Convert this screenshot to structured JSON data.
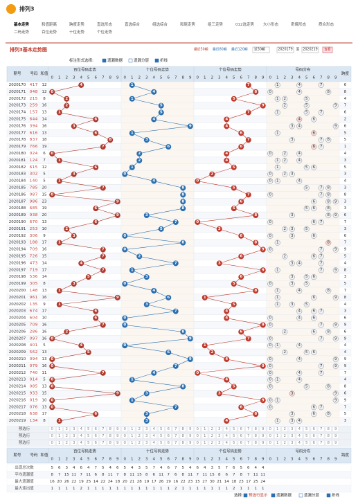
{
  "header": {
    "logo": "排列3",
    "tabs": [
      "基本走势",
      "和值距离",
      "跨度走势",
      "直选形态",
      "直选综合",
      "组选综合",
      "和尾走势",
      "组三走势",
      "012选走势",
      "大小形态",
      "奇偶形态",
      "质合形态",
      "二码走势",
      "百位走势",
      "十位走势",
      "个位走势"
    ]
  },
  "title": "排列3基本走势图",
  "ranges": [
    "最近50期",
    "最近80期",
    "最近120期"
  ],
  "select": "近30期",
  "from": "2020179",
  "to_word": "至",
  "to": "2020219",
  "button": "查看",
  "options": {
    "label": "标注形式选择:",
    "items": [
      "遗漏数据",
      "遗漏分层",
      "折线"
    ]
  },
  "columns": {
    "period": "期号",
    "number": "号码",
    "sum": "和值",
    "groups": [
      "百位号码走势",
      "十位号码走势",
      "个位号码走势",
      "号码分布"
    ],
    "span": "跨度",
    "digits": [
      0,
      1,
      2,
      3,
      4,
      5,
      6,
      7,
      8,
      9
    ]
  },
  "rows": [
    {
      "period": "2020170",
      "number": [
        4,
        1,
        7
      ],
      "sum": 12,
      "span": 6
    },
    {
      "period": "2020171",
      "number": [
        0,
        4,
        8
      ],
      "sum": 12,
      "span": 8
    },
    {
      "period": "2020172",
      "number": [
        2,
        1,
        5
      ],
      "sum": 8,
      "span": 4
    },
    {
      "period": "2020173",
      "number": [
        2,
        5,
        9
      ],
      "sum": 16,
      "span": 7
    },
    {
      "period": "2020174",
      "number": [
        1,
        5,
        7
      ],
      "sum": 13,
      "span": 6
    },
    {
      "period": "2020175",
      "number": [
        6,
        4,
        4
      ],
      "sum": 14,
      "span": 2
    },
    {
      "period": "2020176",
      "number": [
        3,
        9,
        4
      ],
      "sum": 16,
      "span": 6
    },
    {
      "period": "2020177",
      "number": [
        6,
        1,
        6
      ],
      "sum": 13,
      "span": 5
    },
    {
      "period": "2020178",
      "number": [
        8,
        3,
        7
      ],
      "sum": 18,
      "span": 5
    },
    {
      "period": "2020179",
      "number": [
        7,
        6,
        6
      ],
      "sum": 19,
      "span": 1
    },
    {
      "period": "2020180",
      "number": [
        0,
        2,
        4
      ],
      "sum": 6,
      "span": 4
    },
    {
      "period": "2020181",
      "number": [
        1,
        2,
        4
      ],
      "sum": 7,
      "span": 3
    },
    {
      "period": "2020182",
      "number": [
        6,
        1,
        5
      ],
      "sum": 12,
      "span": 5
    },
    {
      "period": "2020183",
      "number": [
        3,
        0,
        2
      ],
      "sum": 5,
      "span": 3
    },
    {
      "period": "2020184",
      "number": [
        1,
        4,
        0
      ],
      "sum": 5,
      "span": 4
    },
    {
      "period": "2020185",
      "number": [
        7,
        8,
        5
      ],
      "sum": 20,
      "span": 3
    },
    {
      "period": "2020186",
      "number": [
        0,
        8,
        7
      ],
      "sum": 15,
      "span": 8
    },
    {
      "period": "2020187",
      "number": [
        9,
        8,
        6
      ],
      "sum": 23,
      "span": 3
    },
    {
      "period": "2020188",
      "number": [
        6,
        8,
        5
      ],
      "sum": 19,
      "span": 3
    },
    {
      "period": "2020189",
      "number": [
        9,
        3,
        8
      ],
      "sum": 20,
      "span": 6
    },
    {
      "period": "2020190",
      "number": [
        6,
        7,
        0
      ],
      "sum": 13,
      "span": 7
    },
    {
      "period": "2020191",
      "number": [
        2,
        5,
        3
      ],
      "sum": 10,
      "span": 3
    },
    {
      "period": "2020192",
      "number": [
        3,
        0,
        6
      ],
      "sum": 9,
      "span": 6
    },
    {
      "period": "2020193",
      "number": [
        1,
        8,
        8
      ],
      "sum": 17,
      "span": 7
    },
    {
      "period": "2020194",
      "number": [
        7,
        0,
        9
      ],
      "sum": 16,
      "span": 9
    },
    {
      "period": "2020195",
      "number": [
        7,
        2,
        6
      ],
      "sum": 15,
      "span": 5
    },
    {
      "period": "2020196",
      "number": [
        4,
        7,
        3
      ],
      "sum": 14,
      "span": 4
    },
    {
      "period": "2020197",
      "number": [
        7,
        1,
        9
      ],
      "sum": 17,
      "span": 8
    },
    {
      "period": "2020198",
      "number": [
        5,
        3,
        6
      ],
      "sum": 14,
      "span": 3
    },
    {
      "period": "2020199",
      "number": [
        3,
        0,
        5
      ],
      "sum": 8,
      "span": 5
    },
    {
      "period": "2020200",
      "number": [
        1,
        4,
        8
      ],
      "sum": 13,
      "span": 7
    },
    {
      "period": "2020201",
      "number": [
        9,
        6,
        1
      ],
      "sum": 16,
      "span": 8
    },
    {
      "period": "2020202",
      "number": [
        1,
        3,
        5
      ],
      "sum": 9,
      "span": 4
    },
    {
      "period": "2020203",
      "number": [
        6,
        7,
        4
      ],
      "sum": 17,
      "span": 3
    },
    {
      "period": "2020204",
      "number": [
        6,
        0,
        4
      ],
      "sum": 10,
      "span": 6
    },
    {
      "period": "2020205",
      "number": [
        7,
        0,
        9
      ],
      "sum": 16,
      "span": 9
    },
    {
      "period": "2020206",
      "number": [
        2,
        8,
        6
      ],
      "sum": 16,
      "span": 6
    },
    {
      "period": "2020207",
      "number": [
        0,
        9,
        7
      ],
      "sum": 16,
      "span": 9
    },
    {
      "period": "2020208",
      "number": [
        4,
        0,
        1
      ],
      "sum": 5,
      "span": 4
    },
    {
      "period": "2020209",
      "number": [
        5,
        6,
        2
      ],
      "sum": 13,
      "span": 4
    },
    {
      "period": "2020210",
      "number": [
        0,
        9,
        4
      ],
      "sum": 13,
      "span": 9
    },
    {
      "period": "2020211",
      "number": [
        0,
        7,
        9
      ],
      "sum": 16,
      "span": 9
    },
    {
      "period": "2020212",
      "number": [
        7,
        4,
        0
      ],
      "sum": 11,
      "span": 7
    },
    {
      "period": "2020213",
      "number": [
        0,
        1,
        4
      ],
      "sum": 5,
      "span": 4
    },
    {
      "period": "2020214",
      "number": [
        0,
        8,
        5
      ],
      "sum": 13,
      "span": 8
    },
    {
      "period": "2020215",
      "number": [
        9,
        3,
        3
      ],
      "sum": 15,
      "span": 6
    },
    {
      "period": "2020216",
      "number": [
        0,
        1,
        9
      ],
      "sum": 10,
      "span": 9
    },
    {
      "period": "2020217",
      "number": [
        0,
        7,
        6
      ],
      "sum": 13,
      "span": 7
    },
    {
      "period": "2020218",
      "number": [
        6,
        3,
        8
      ],
      "sum": 17,
      "span": 5
    },
    {
      "period": "2020219",
      "number": [
        1,
        3,
        4
      ],
      "sum": 8,
      "span": 3
    }
  ],
  "preselect": "预选行",
  "stats": [
    {
      "label": "出现总次数",
      "values": [
        5,
        6,
        3,
        4,
        6,
        4,
        7,
        5,
        4,
        6,
        5,
        4,
        3,
        5,
        7,
        4,
        6,
        7,
        5,
        4,
        6,
        4,
        3,
        5,
        7,
        6,
        5,
        6,
        4,
        4
      ]
    },
    {
      "label": "平均遗漏值",
      "values": [
        8,
        7,
        15,
        11,
        7,
        11,
        6,
        8,
        11,
        7,
        8,
        11,
        15,
        8,
        6,
        11,
        7,
        6,
        8,
        11,
        7,
        11,
        15,
        8,
        6,
        7,
        8,
        7,
        11,
        11
      ]
    },
    {
      "label": "最大遗漏值",
      "values": [
        16,
        20,
        26,
        22,
        19,
        25,
        14,
        22,
        24,
        18,
        20,
        21,
        28,
        19,
        17,
        26,
        19,
        16,
        22,
        23,
        15,
        27,
        30,
        21,
        14,
        18,
        23,
        17,
        25,
        24
      ]
    },
    {
      "label": "最大连出值",
      "values": [
        1,
        1,
        1,
        1,
        2,
        1,
        1,
        1,
        1,
        1,
        1,
        1,
        1,
        1,
        1,
        1,
        1,
        2,
        1,
        1,
        1,
        1,
        1,
        1,
        1,
        2,
        1,
        1,
        1,
        1
      ]
    }
  ],
  "footer": {
    "label": "选择:",
    "items": [
      "预选行显示",
      "遗漏数据",
      "遗漏分层",
      "折线"
    ]
  }
}
